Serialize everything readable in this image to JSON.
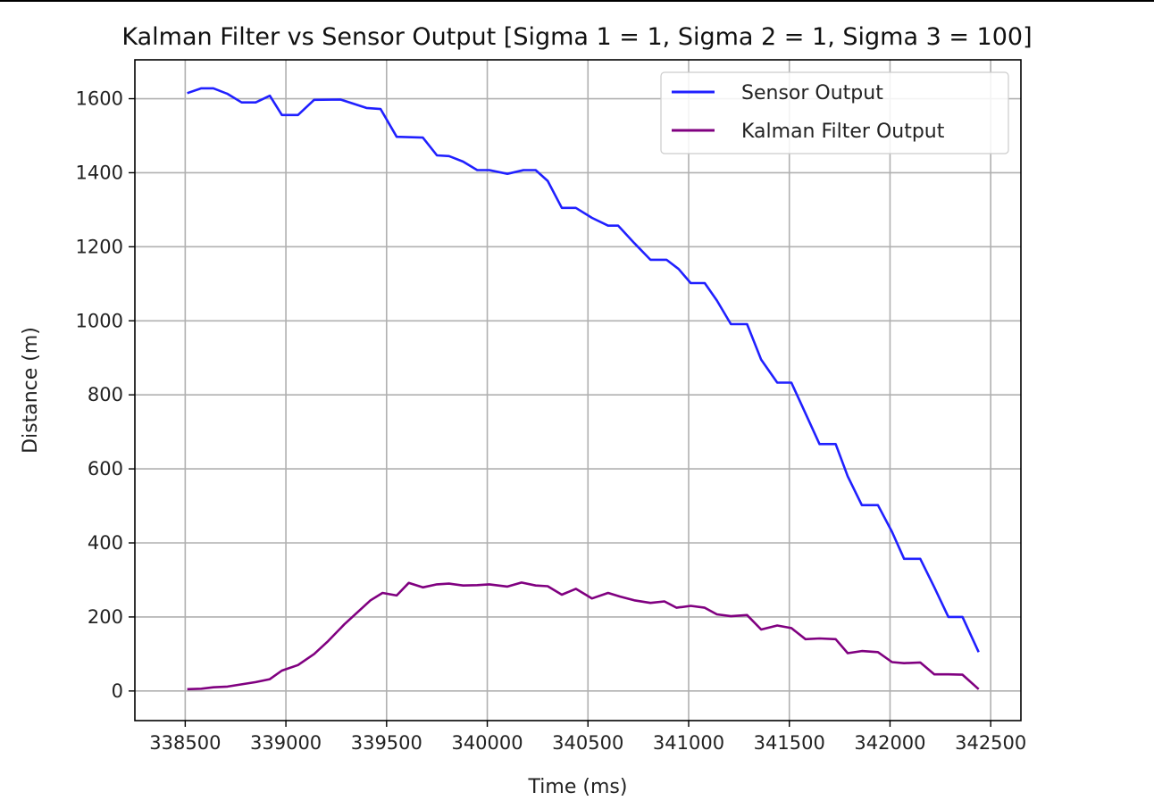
{
  "chart_data": {
    "type": "line",
    "title": "Kalman Filter vs Sensor Output [Sigma 1 = 1, Sigma 2 = 1, Sigma 3 = 100]",
    "xlabel": "Time (ms)",
    "ylabel": "Distance (m)",
    "xlim": [
      338250,
      342650
    ],
    "ylim": [
      -80,
      1705
    ],
    "x_ticks": [
      338500,
      339000,
      339500,
      340000,
      340500,
      341000,
      341500,
      342000,
      342500
    ],
    "y_ticks": [
      0,
      200,
      400,
      600,
      800,
      1000,
      1200,
      1400,
      1600
    ],
    "grid": true,
    "legend_position": "upper-right",
    "series": [
      {
        "name": "Sensor Output",
        "color": "#2020ff",
        "x": [
          338510,
          338580,
          338640,
          338710,
          338780,
          338850,
          338920,
          338980,
          339060,
          339140,
          339270,
          339400,
          339470,
          339550,
          339680,
          339750,
          339810,
          339880,
          339950,
          340010,
          340100,
          340180,
          340240,
          340300,
          340370,
          340440,
          340520,
          340600,
          340650,
          340730,
          340810,
          340890,
          340950,
          341010,
          341080,
          341140,
          341210,
          341290,
          341360,
          341440,
          341510,
          341580,
          341650,
          341730,
          341790,
          341860,
          341940,
          342010,
          342070,
          342150,
          342220,
          342290,
          342360,
          342440
        ],
        "y": [
          1615,
          1628,
          1628,
          1613,
          1590,
          1590,
          1608,
          1556,
          1556,
          1597,
          1598,
          1575,
          1572,
          1497,
          1495,
          1447,
          1445,
          1430,
          1407,
          1407,
          1397,
          1407,
          1407,
          1378,
          1305,
          1305,
          1278,
          1257,
          1257,
          1210,
          1165,
          1165,
          1140,
          1102,
          1102,
          1055,
          991,
          991,
          895,
          833,
          833,
          750,
          667,
          667,
          580,
          502,
          502,
          430,
          357,
          357,
          280,
          200,
          200,
          105
        ]
      },
      {
        "name": "Kalman Filter Output",
        "color": "#800080",
        "x": [
          338510,
          338580,
          338640,
          338710,
          338780,
          338850,
          338920,
          338980,
          339060,
          339140,
          339210,
          339290,
          339360,
          339420,
          339480,
          339550,
          339610,
          339680,
          339750,
          339810,
          339880,
          339950,
          340010,
          340100,
          340170,
          340240,
          340300,
          340370,
          340440,
          340520,
          340600,
          340660,
          340730,
          340810,
          340880,
          340940,
          341010,
          341080,
          341140,
          341210,
          341290,
          341360,
          341440,
          341510,
          341580,
          341650,
          341730,
          341790,
          341860,
          341940,
          342010,
          342070,
          342150,
          342220,
          342290,
          342360,
          342440
        ],
        "y": [
          5,
          6,
          10,
          12,
          18,
          24,
          32,
          55,
          70,
          100,
          135,
          180,
          215,
          245,
          265,
          258,
          292,
          280,
          288,
          290,
          285,
          286,
          288,
          282,
          293,
          285,
          283,
          260,
          276,
          250,
          265,
          255,
          245,
          238,
          242,
          225,
          230,
          225,
          207,
          202,
          205,
          166,
          177,
          170,
          140,
          142,
          140,
          102,
          108,
          105,
          78,
          75,
          77,
          45,
          45,
          44,
          5
        ]
      }
    ]
  }
}
